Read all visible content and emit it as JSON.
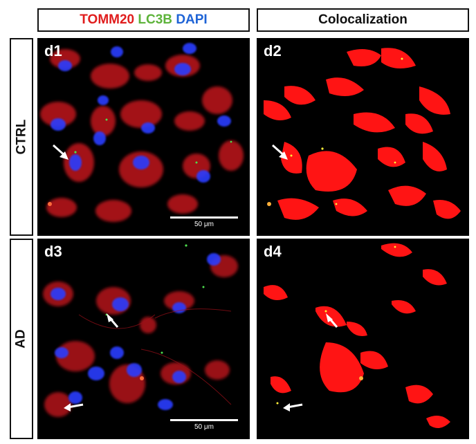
{
  "header": {
    "stain_tomm20": "TOMM20",
    "stain_lc3b": "LC3B",
    "stain_dapi": "DAPI",
    "colocalization": "Colocalization"
  },
  "rows": {
    "ctrl": "CTRL",
    "ad": "AD"
  },
  "panels": {
    "d1": "d1",
    "d2": "d2",
    "d3": "d3",
    "d4": "d4"
  },
  "scale_bar": "50 μm",
  "colors": {
    "tomm20": "#e01d1d",
    "lc3b": "#5db33a",
    "dapi": "#1e63d6",
    "panel_bg": "#000000"
  }
}
